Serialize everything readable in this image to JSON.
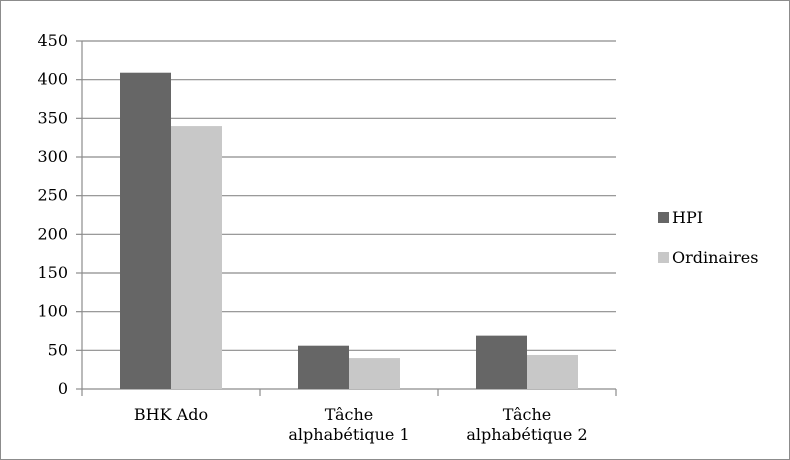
{
  "chart_data": {
    "type": "bar",
    "categories": [
      [
        "BHK Ado"
      ],
      [
        "Tâche",
        "alphabétique 1"
      ],
      [
        "Tâche",
        "alphabétique 2"
      ]
    ],
    "series": [
      {
        "name": "HPI",
        "values": [
          409,
          56,
          69
        ],
        "color": "#666666"
      },
      {
        "name": "Ordinaires",
        "values": [
          340,
          40,
          44
        ],
        "color": "#c8c8c8"
      }
    ],
    "ylim": [
      0,
      450
    ],
    "yticks": [
      0,
      50,
      100,
      150,
      200,
      250,
      300,
      350,
      400,
      450
    ],
    "grid": true,
    "legend_position": "right",
    "title": "",
    "xlabel": "",
    "ylabel": ""
  }
}
